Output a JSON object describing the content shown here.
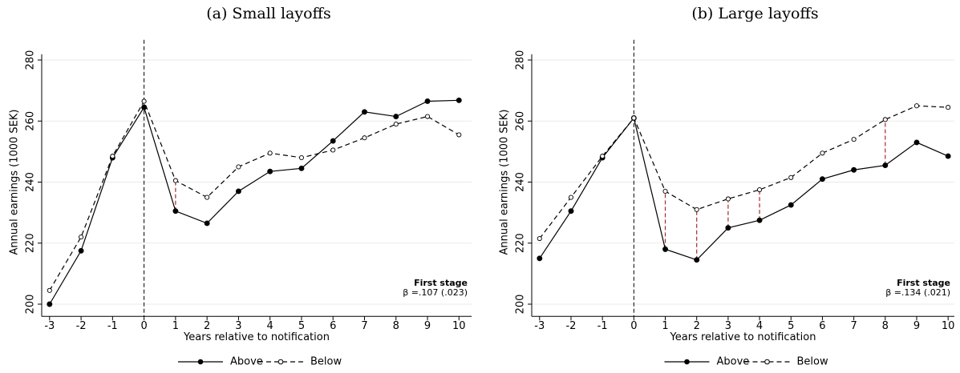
{
  "chart_data": [
    {
      "type": "line",
      "title": "(a) Small layoffs",
      "xlabel": "Years relative to notification",
      "ylabel": "Annual earnings (1000 SEK)",
      "x": [
        -3,
        -2,
        -1,
        0,
        1,
        2,
        3,
        4,
        5,
        6,
        7,
        8,
        9,
        10
      ],
      "series": [
        {
          "name": "Above",
          "color": "#000000",
          "line_style": "solid",
          "marker": "filled",
          "values": [
            200,
            217.5,
            248,
            264.5,
            230.5,
            226.5,
            237,
            243.5,
            244.5,
            253.5,
            263,
            261.5,
            266.5,
            266.8
          ]
        },
        {
          "name": "Below",
          "color": "#000000",
          "line_style": "dashed",
          "marker": "hollow",
          "values": [
            204.5,
            222,
            248.5,
            266.5,
            240.5,
            235,
            245,
            249.5,
            248,
            250.5,
            254.5,
            259,
            261.5,
            255.5
          ]
        }
      ],
      "xlim": [
        -3.25,
        10.4
      ],
      "xticks": [
        -3,
        -2,
        -1,
        0,
        1,
        2,
        3,
        4,
        5,
        6,
        7,
        8,
        9,
        10
      ],
      "ylim": [
        196,
        284
      ],
      "yticks": [
        200,
        220,
        240,
        260,
        280
      ],
      "grid": true,
      "vline": 0,
      "highlight_x": [
        1
      ],
      "highlight_color": "#a52a2a",
      "annotation": [
        "First stage",
        "β =.107 (.023)"
      ]
    },
    {
      "type": "line",
      "title": "(b) Large layoffs",
      "xlabel": "Years relative to notification",
      "ylabel": "Annual earnings (1000 SEK)",
      "x": [
        -3,
        -2,
        -1,
        0,
        1,
        2,
        3,
        4,
        5,
        6,
        7,
        8,
        9,
        10
      ],
      "series": [
        {
          "name": "Above",
          "color": "#000000",
          "line_style": "solid",
          "marker": "filled",
          "values": [
            215,
            230.5,
            248,
            261,
            218,
            214.5,
            225,
            227.5,
            232.5,
            241,
            244,
            245.5,
            253,
            248.5
          ]
        },
        {
          "name": "Below",
          "color": "#000000",
          "line_style": "dashed",
          "marker": "hollow",
          "values": [
            221.5,
            235,
            248.5,
            261,
            237,
            231,
            234.5,
            237.5,
            241.5,
            249.5,
            254,
            260.5,
            265,
            264.5
          ]
        }
      ],
      "xlim": [
        -3.25,
        10.2
      ],
      "xticks": [
        -3,
        -2,
        -1,
        0,
        1,
        2,
        3,
        4,
        5,
        6,
        7,
        8,
        9,
        10
      ],
      "ylim": [
        196,
        284
      ],
      "yticks": [
        200,
        220,
        240,
        260,
        280
      ],
      "grid": true,
      "vline": 0,
      "highlight_x": [
        1,
        2,
        3,
        4,
        8
      ],
      "highlight_color": "#a52a2a",
      "annotation": [
        "First stage",
        "β =.134 (.021)"
      ]
    }
  ]
}
